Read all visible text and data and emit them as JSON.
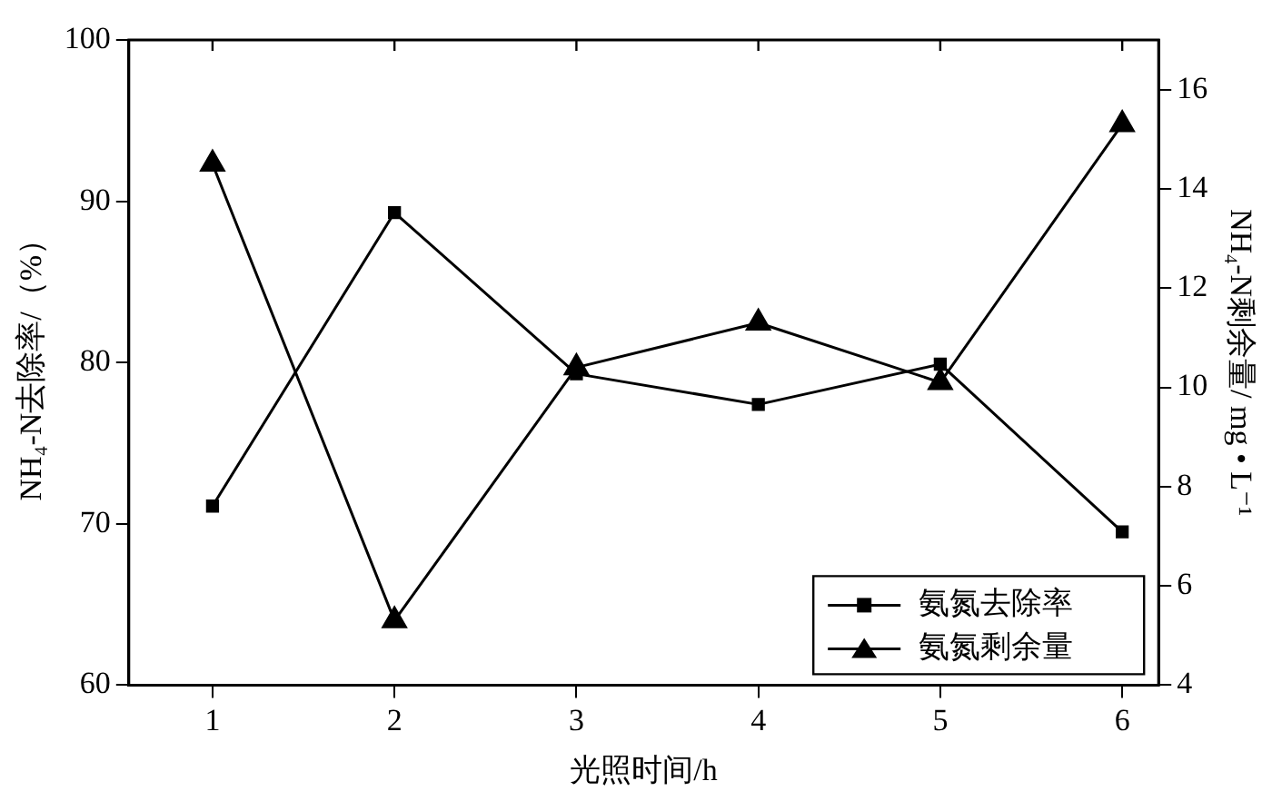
{
  "chart_data": {
    "type": "line",
    "xlabel": "光照时间/h",
    "ylabel": "NH₄-N去除率/（%）",
    "y2label": "NH₄-N剩余量/ mg • L⁻¹",
    "x": [
      1,
      2,
      3,
      4,
      5,
      6
    ],
    "xlim": [
      0.54,
      6.2
    ],
    "xticks": [
      1,
      2,
      3,
      4,
      5,
      6
    ],
    "ylim": [
      60,
      100
    ],
    "yticks": [
      60,
      70,
      80,
      90,
      100
    ],
    "y2lim": [
      4,
      17
    ],
    "y2ticks": [
      4,
      6,
      8,
      10,
      12,
      14,
      16
    ],
    "grid": false,
    "legend": "bottom right",
    "line_style": "solid",
    "series": [
      {
        "name": "氨氮去除率",
        "color": "#000000",
        "marker": "square",
        "values": [
          71.1,
          89.3,
          79.3,
          77.4,
          79.9,
          69.5
        ]
      },
      {
        "name": "氨氮剩余量",
        "color": "#000000",
        "marker": "triangle",
        "axis": "y2",
        "values": [
          14.5,
          5.3,
          10.4,
          11.3,
          10.1,
          15.3
        ]
      }
    ]
  }
}
